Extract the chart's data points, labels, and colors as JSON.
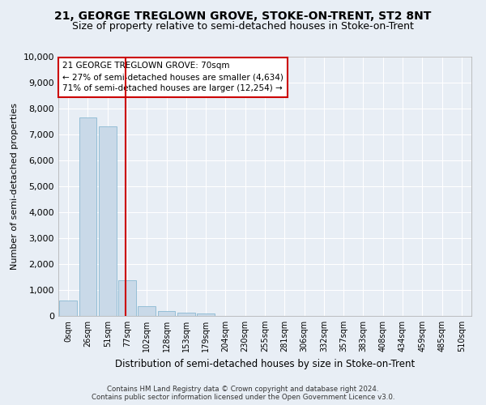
{
  "title": "21, GEORGE TREGLOWN GROVE, STOKE-ON-TRENT, ST2 8NT",
  "subtitle": "Size of property relative to semi-detached houses in Stoke-on-Trent",
  "xlabel": "Distribution of semi-detached houses by size in Stoke-on-Trent",
  "ylabel": "Number of semi-detached properties",
  "footnote1": "Contains HM Land Registry data © Crown copyright and database right 2024.",
  "footnote2": "Contains public sector information licensed under the Open Government Licence v3.0.",
  "annotation_title": "21 GEORGE TREGLOWN GROVE: 70sqm",
  "annotation_line1": "← 27% of semi-detached houses are smaller (4,634)",
  "annotation_line2": "71% of semi-detached houses are larger (12,254) →",
  "bar_labels": [
    "0sqm",
    "26sqm",
    "51sqm",
    "77sqm",
    "102sqm",
    "128sqm",
    "153sqm",
    "179sqm",
    "204sqm",
    "230sqm",
    "255sqm",
    "281sqm",
    "306sqm",
    "332sqm",
    "357sqm",
    "383sqm",
    "408sqm",
    "434sqm",
    "459sqm",
    "485sqm",
    "510sqm"
  ],
  "bar_values": [
    600,
    7650,
    7300,
    1380,
    360,
    175,
    130,
    105,
    0,
    0,
    0,
    0,
    0,
    0,
    0,
    0,
    0,
    0,
    0,
    0,
    0
  ],
  "bar_color": "#c9d9e8",
  "bar_edge_color": "#7ab0cc",
  "ylim": [
    0,
    10000
  ],
  "yticks": [
    0,
    1000,
    2000,
    3000,
    4000,
    5000,
    6000,
    7000,
    8000,
    9000,
    10000
  ],
  "background_color": "#e8eef5",
  "plot_bg_color": "#e8eef5",
  "grid_color": "#ffffff",
  "annotation_box_color": "#ffffff",
  "annotation_box_edge": "#cc0000",
  "property_line_color": "#cc0000",
  "title_fontsize": 10,
  "subtitle_fontsize": 9
}
